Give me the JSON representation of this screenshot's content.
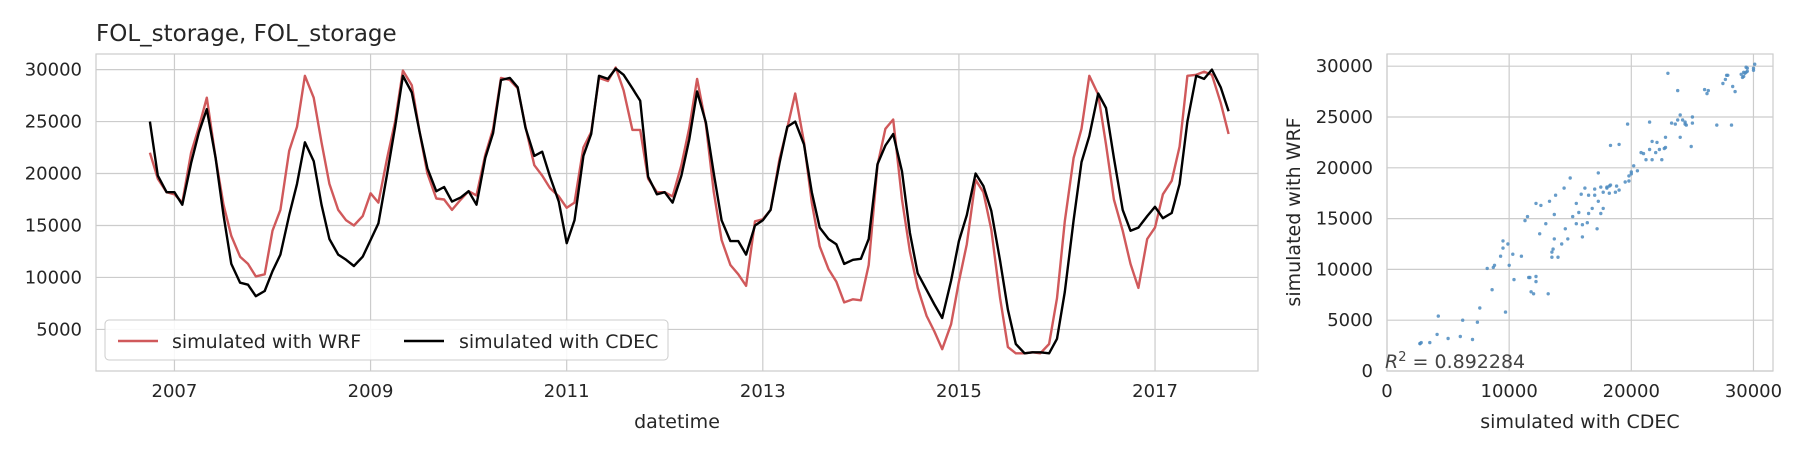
{
  "chart_data": [
    {
      "type": "line",
      "title": "FOL_storage, FOL_storage",
      "xlabel": "datetime",
      "ylabel": "",
      "xlim": [
        2006.2,
        2018.05
      ],
      "ylim": [
        1000,
        31500
      ],
      "x_ticks": [
        2007,
        2009,
        2011,
        2013,
        2015,
        2017
      ],
      "x_tick_labels": [
        "2007",
        "2009",
        "2011",
        "2013",
        "2015",
        "2017"
      ],
      "y_ticks": [
        5000,
        10000,
        15000,
        20000,
        25000,
        30000
      ],
      "y_tick_labels": [
        "5000",
        "10000",
        "15000",
        "20000",
        "25000",
        "30000"
      ],
      "grid": true,
      "legend": "lower-left",
      "x": [
        2006.75,
        2006.83,
        2006.92,
        2007.0,
        2007.08,
        2007.17,
        2007.25,
        2007.33,
        2007.42,
        2007.5,
        2007.58,
        2007.67,
        2007.75,
        2007.83,
        2007.92,
        2008.0,
        2008.08,
        2008.17,
        2008.25,
        2008.33,
        2008.42,
        2008.5,
        2008.58,
        2008.67,
        2008.75,
        2008.83,
        2008.92,
        2009.0,
        2009.08,
        2009.17,
        2009.25,
        2009.33,
        2009.42,
        2009.5,
        2009.58,
        2009.67,
        2009.75,
        2009.83,
        2009.92,
        2010.0,
        2010.08,
        2010.17,
        2010.25,
        2010.33,
        2010.42,
        2010.5,
        2010.58,
        2010.67,
        2010.75,
        2010.83,
        2010.92,
        2011.0,
        2011.08,
        2011.17,
        2011.25,
        2011.33,
        2011.42,
        2011.5,
        2011.58,
        2011.67,
        2011.75,
        2011.83,
        2011.92,
        2012.0,
        2012.08,
        2012.17,
        2012.25,
        2012.33,
        2012.42,
        2012.5,
        2012.58,
        2012.67,
        2012.75,
        2012.83,
        2012.92,
        2013.0,
        2013.08,
        2013.17,
        2013.25,
        2013.33,
        2013.42,
        2013.5,
        2013.58,
        2013.67,
        2013.75,
        2013.83,
        2013.92,
        2014.0,
        2014.08,
        2014.17,
        2014.25,
        2014.33,
        2014.42,
        2014.5,
        2014.58,
        2014.67,
        2014.75,
        2014.83,
        2014.92,
        2015.0,
        2015.08,
        2015.17,
        2015.25,
        2015.33,
        2015.42,
        2015.5,
        2015.58,
        2015.67,
        2015.75,
        2015.83,
        2015.92,
        2016.0,
        2016.08,
        2016.17,
        2016.25,
        2016.33,
        2016.42,
        2016.5,
        2016.58,
        2016.67,
        2016.75,
        2016.83,
        2016.92,
        2017.0,
        2017.08,
        2017.17,
        2017.25,
        2017.33,
        2017.42,
        2017.5,
        2017.58,
        2017.67,
        2017.75
      ],
      "series": [
        {
          "name": "simulated with WRF",
          "color": "#d0595b",
          "values": [
            22000,
            19500,
            18200,
            18000,
            17200,
            22000,
            24500,
            27300,
            21500,
            17000,
            14000,
            12000,
            11300,
            10100,
            10300,
            14500,
            16500,
            22200,
            24500,
            29400,
            27300,
            23000,
            19000,
            16500,
            15500,
            15000,
            15900,
            18100,
            17200,
            21500,
            25000,
            29900,
            28500,
            24000,
            20000,
            17600,
            17500,
            16500,
            17500,
            18300,
            17900,
            21800,
            24300,
            29200,
            29000,
            28200,
            24500,
            20800,
            19800,
            18600,
            17800,
            16700,
            17200,
            22500,
            24000,
            29200,
            28900,
            30200,
            28000,
            24200,
            24200,
            19500,
            18200,
            18200,
            17800,
            20800,
            24400,
            29100,
            24700,
            18200,
            13600,
            11200,
            10300,
            9200,
            15400,
            15600,
            16500,
            21400,
            24400,
            27700,
            23000,
            17200,
            13000,
            10800,
            9600,
            7600,
            7900,
            7800,
            11200,
            20800,
            24300,
            25200,
            17500,
            12500,
            9000,
            6300,
            4800,
            3100,
            5500,
            9600,
            13200,
            19400,
            18200,
            14600,
            8000,
            3300,
            2700,
            2700,
            2800,
            2700,
            3600,
            8000,
            15400,
            21500,
            24300,
            29400,
            27600,
            22800,
            17500,
            14500,
            11300,
            9000,
            13700,
            14800,
            18000,
            19300,
            22600,
            29400,
            29500,
            29800,
            29500,
            26800,
            23800
          ]
        },
        {
          "name": "simulated with CDEC",
          "color": "#000000",
          "values": [
            25000,
            19800,
            18200,
            18200,
            17000,
            21000,
            24000,
            26200,
            21500,
            16000,
            11300,
            9500,
            9300,
            8200,
            8700,
            10600,
            12200,
            16000,
            19000,
            23000,
            21200,
            17000,
            13700,
            12200,
            11700,
            11100,
            12000,
            13600,
            15200,
            20000,
            24500,
            29400,
            27800,
            24000,
            20500,
            18300,
            18700,
            17300,
            17700,
            18300,
            17000,
            21500,
            23900,
            29000,
            29200,
            28300,
            24400,
            21700,
            22100,
            19700,
            17300,
            13300,
            15500,
            21700,
            23800,
            29400,
            29100,
            30100,
            29500,
            28200,
            27000,
            19700,
            18000,
            18200,
            17200,
            19800,
            23300,
            27900,
            24900,
            20000,
            15500,
            13500,
            13500,
            12200,
            15000,
            15500,
            16500,
            21000,
            24500,
            25000,
            22800,
            18200,
            14800,
            13700,
            13200,
            11300,
            11700,
            11800,
            13700,
            20900,
            22700,
            23800,
            20200,
            14300,
            10400,
            8800,
            7400,
            6100,
            9700,
            13500,
            16000,
            20000,
            18800,
            16400,
            11600,
            6900,
            3600,
            2700,
            2800,
            2800,
            2700,
            4100,
            8600,
            15500,
            21100,
            23600,
            27700,
            26300,
            21500,
            16500,
            14500,
            14800,
            15900,
            16800,
            15700,
            16200,
            19000,
            25000,
            29400,
            29100,
            30000,
            28300,
            26000
          ]
        }
      ]
    },
    {
      "type": "scatter",
      "title": "",
      "xlabel": "simulated with CDEC",
      "ylabel": "simulated with WRF",
      "xlim": [
        0,
        31600
      ],
      "ylim": [
        0,
        31200
      ],
      "x_ticks": [
        0,
        10000,
        20000,
        30000
      ],
      "x_tick_labels": [
        "0",
        "10000",
        "20000",
        "30000"
      ],
      "y_ticks": [
        0,
        5000,
        10000,
        15000,
        20000,
        25000,
        30000
      ],
      "y_tick_labels": [
        "0",
        "5000",
        "10000",
        "15000",
        "20000",
        "25000",
        "30000"
      ],
      "grid": true,
      "color": "#4c8bbf",
      "annotation": "R² = 0.892284",
      "points": [
        [
          2700,
          2700
        ],
        [
          2800,
          2800
        ],
        [
          2700,
          2700
        ],
        [
          3500,
          2800
        ],
        [
          4100,
          3600
        ],
        [
          4200,
          5400
        ],
        [
          5000,
          3200
        ],
        [
          6000,
          3400
        ],
        [
          6200,
          5000
        ],
        [
          7000,
          3100
        ],
        [
          7400,
          4800
        ],
        [
          7600,
          6200
        ],
        [
          8200,
          10100
        ],
        [
          8600,
          8000
        ],
        [
          8700,
          10200
        ],
        [
          8800,
          10400
        ],
        [
          9300,
          11300
        ],
        [
          9500,
          12100
        ],
        [
          9500,
          12800
        ],
        [
          9700,
          5800
        ],
        [
          9900,
          12500
        ],
        [
          10000,
          10400
        ],
        [
          10300,
          11500
        ],
        [
          10400,
          9000
        ],
        [
          11000,
          11300
        ],
        [
          11300,
          14800
        ],
        [
          11500,
          15200
        ],
        [
          11600,
          9200
        ],
        [
          11700,
          9200
        ],
        [
          11800,
          7800
        ],
        [
          12000,
          7600
        ],
        [
          12200,
          16500
        ],
        [
          12200,
          9300
        ],
        [
          12200,
          8800
        ],
        [
          12500,
          13500
        ],
        [
          12600,
          16300
        ],
        [
          13000,
          14500
        ],
        [
          13200,
          7600
        ],
        [
          13300,
          16700
        ],
        [
          13500,
          11200
        ],
        [
          13500,
          11700
        ],
        [
          13600,
          12000
        ],
        [
          13700,
          15400
        ],
        [
          13700,
          13000
        ],
        [
          13800,
          17300
        ],
        [
          14000,
          11200
        ],
        [
          14300,
          12500
        ],
        [
          14500,
          18000
        ],
        [
          14600,
          14000
        ],
        [
          14800,
          13000
        ],
        [
          15000,
          19000
        ],
        [
          15200,
          15200
        ],
        [
          15500,
          16500
        ],
        [
          15500,
          14500
        ],
        [
          15700,
          15600
        ],
        [
          15900,
          17400
        ],
        [
          16000,
          13200
        ],
        [
          16000,
          14400
        ],
        [
          16200,
          18000
        ],
        [
          16400,
          14600
        ],
        [
          16500,
          17300
        ],
        [
          16500,
          15500
        ],
        [
          16800,
          16000
        ],
        [
          17000,
          17900
        ],
        [
          17000,
          17300
        ],
        [
          17200,
          14000
        ],
        [
          17300,
          16700
        ],
        [
          17300,
          19500
        ],
        [
          17500,
          18100
        ],
        [
          17500,
          15500
        ],
        [
          17700,
          17600
        ],
        [
          17700,
          16000
        ],
        [
          18000,
          18100
        ],
        [
          18000,
          18000
        ],
        [
          18200,
          18200
        ],
        [
          18200,
          17500
        ],
        [
          18300,
          18300
        ],
        [
          18300,
          22200
        ],
        [
          18700,
          17600
        ],
        [
          18800,
          18200
        ],
        [
          19000,
          17800
        ],
        [
          19000,
          22300
        ],
        [
          19500,
          18600
        ],
        [
          19700,
          24300
        ],
        [
          19800,
          19200
        ],
        [
          19800,
          18700
        ],
        [
          20000,
          19400
        ],
        [
          20000,
          19600
        ],
        [
          20200,
          20200
        ],
        [
          20500,
          19700
        ],
        [
          20800,
          21500
        ],
        [
          21000,
          21400
        ],
        [
          21200,
          20800
        ],
        [
          21500,
          21800
        ],
        [
          21500,
          24500
        ],
        [
          21700,
          20800
        ],
        [
          21700,
          22600
        ],
        [
          22000,
          21500
        ],
        [
          22100,
          22500
        ],
        [
          22300,
          21800
        ],
        [
          22500,
          20800
        ],
        [
          22700,
          21900
        ],
        [
          22800,
          22000
        ],
        [
          22800,
          23000
        ],
        [
          23000,
          29300
        ],
        [
          23300,
          24400
        ],
        [
          23600,
          24300
        ],
        [
          23800,
          27600
        ],
        [
          23800,
          24700
        ],
        [
          24000,
          25200
        ],
        [
          24000,
          23000
        ],
        [
          24200,
          24700
        ],
        [
          24400,
          24500
        ],
        [
          24400,
          24300
        ],
        [
          24500,
          24200
        ],
        [
          24900,
          22100
        ],
        [
          25000,
          24400
        ],
        [
          25000,
          25000
        ],
        [
          26000,
          27700
        ],
        [
          26200,
          27300
        ],
        [
          26300,
          27600
        ],
        [
          27000,
          24200
        ],
        [
          27500,
          28300
        ],
        [
          27700,
          28700
        ],
        [
          27800,
          29100
        ],
        [
          27900,
          29100
        ],
        [
          28200,
          24200
        ],
        [
          28300,
          28000
        ],
        [
          28500,
          27500
        ],
        [
          29000,
          29200
        ],
        [
          29100,
          28900
        ],
        [
          29200,
          29000
        ],
        [
          29200,
          29400
        ],
        [
          29300,
          29300
        ],
        [
          29400,
          29400
        ],
        [
          29400,
          29900
        ],
        [
          29500,
          29800
        ],
        [
          29500,
          29500
        ],
        [
          30000,
          29600
        ],
        [
          30100,
          30200
        ],
        [
          30000,
          29800
        ]
      ]
    }
  ]
}
